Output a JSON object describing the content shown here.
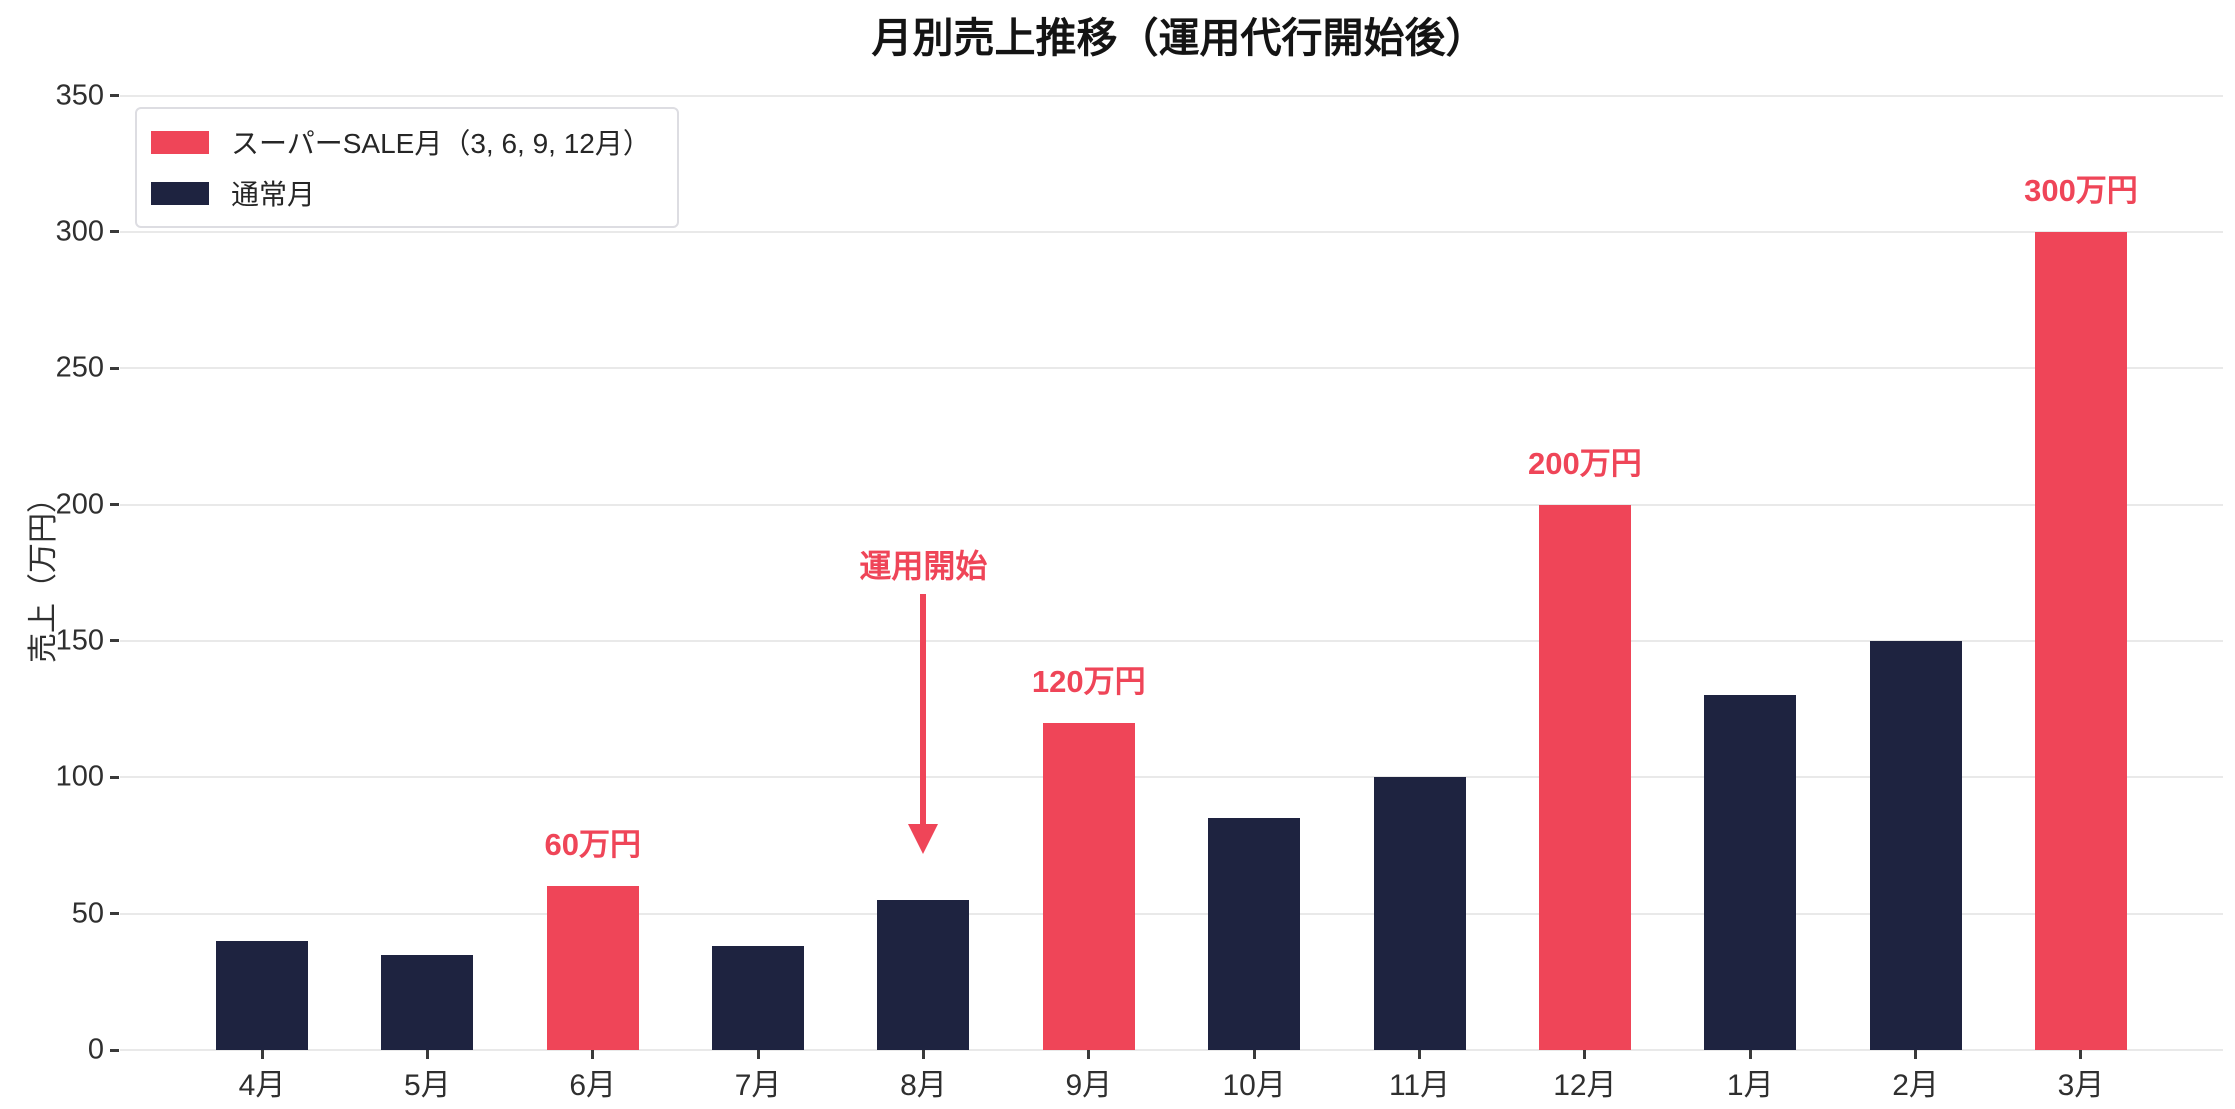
{
  "figure": {
    "title": "月別売上推移（運用代行開始後）"
  },
  "chart_data": {
    "type": "bar",
    "title": "月別売上推移（運用代行開始後）",
    "xlabel": "",
    "ylabel": "売上（万円）",
    "categories": [
      "4月",
      "5月",
      "6月",
      "7月",
      "8月",
      "9月",
      "10月",
      "11月",
      "12月",
      "1月",
      "2月",
      "3月"
    ],
    "values": [
      40,
      35,
      60,
      38,
      55,
      120,
      85,
      100,
      200,
      130,
      150,
      300
    ],
    "sale_month_indices": [
      2,
      5,
      8,
      11
    ],
    "value_labels": [
      {
        "category": "6月",
        "text": "60万円"
      },
      {
        "category": "9月",
        "text": "120万円"
      },
      {
        "category": "12月",
        "text": "200万円"
      },
      {
        "category": "3月",
        "text": "300万円"
      }
    ],
    "annotation": {
      "text": "運用開始",
      "points_at_category": "8月"
    },
    "ylim": [
      0,
      350
    ],
    "yticks": [
      0,
      50,
      100,
      150,
      200,
      250,
      300,
      350
    ],
    "grid": "horizontal",
    "legend": {
      "position": "upper-left",
      "items": [
        {
          "label": "スーパーSALE月（3, 6, 9, 12月）",
          "color": "#EF4558"
        },
        {
          "label": "通常月",
          "color": "#1E2340"
        }
      ]
    },
    "colors": {
      "sale_month": "#EF4558",
      "normal_month": "#1E2340",
      "value_label_text": "#EF4558",
      "annotation": "#EF4558",
      "grid": "#e9e9e9",
      "tick_mark": "#3a3a3a",
      "background": "#ffffff"
    }
  }
}
